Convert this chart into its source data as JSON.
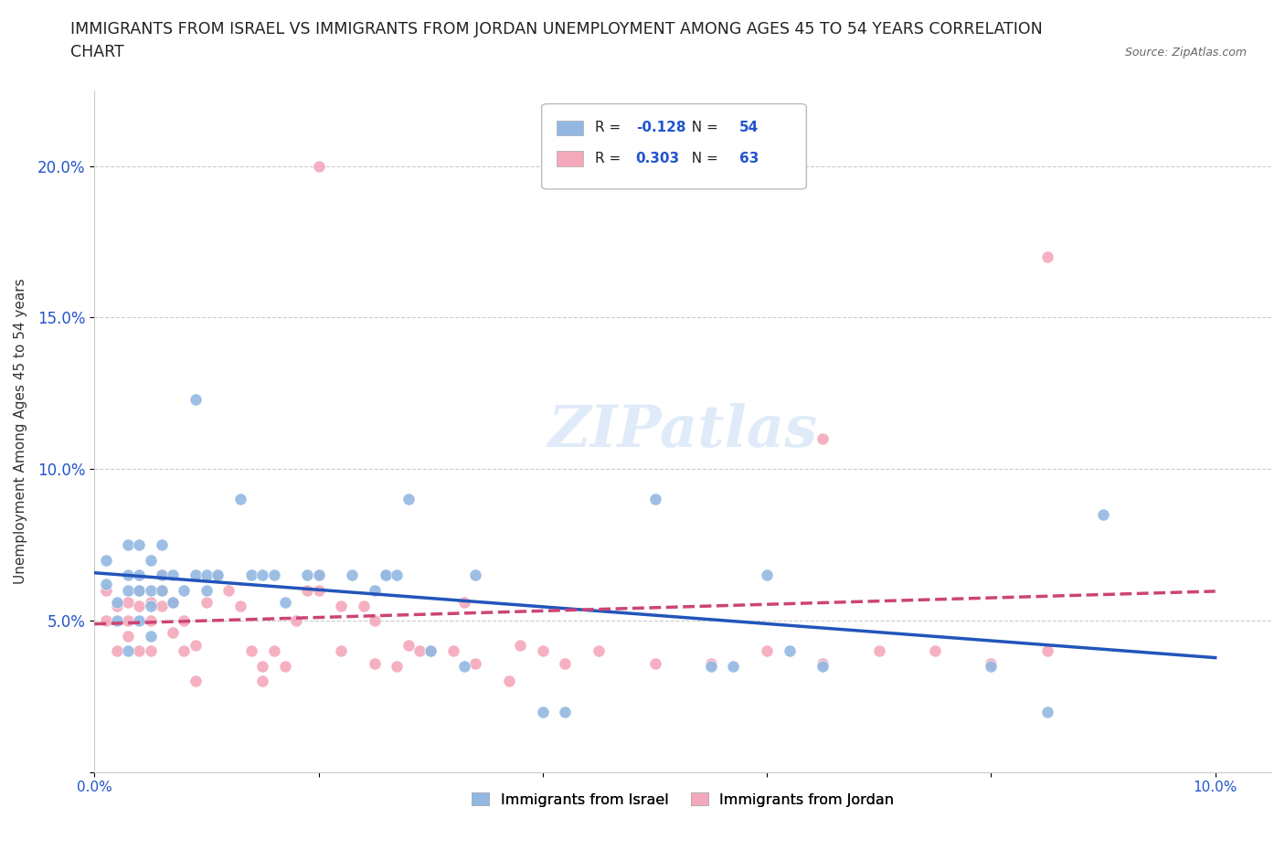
{
  "title_line1": "IMMIGRANTS FROM ISRAEL VS IMMIGRANTS FROM JORDAN UNEMPLOYMENT AMONG AGES 45 TO 54 YEARS CORRELATION",
  "title_line2": "CHART",
  "source": "Source: ZipAtlas.com",
  "ylabel": "Unemployment Among Ages 45 to 54 years",
  "xlim": [
    0.0,
    0.105
  ],
  "ylim": [
    0.0,
    0.225
  ],
  "yticks": [
    0.0,
    0.05,
    0.1,
    0.15,
    0.2
  ],
  "ytick_labels": [
    "",
    "5.0%",
    "10.0%",
    "15.0%",
    "20.0%"
  ],
  "israel_R": -0.128,
  "israel_N": 54,
  "jordan_R": 0.303,
  "jordan_N": 63,
  "israel_color": "#92b8e2",
  "jordan_color": "#f4a8bb",
  "israel_line_color": "#2255bb",
  "jordan_line_color": "#cc4477",
  "watermark": "ZIPatlas",
  "israel_x": [
    0.001,
    0.001,
    0.002,
    0.002,
    0.003,
    0.003,
    0.003,
    0.003,
    0.004,
    0.004,
    0.004,
    0.004,
    0.005,
    0.005,
    0.005,
    0.005,
    0.006,
    0.006,
    0.006,
    0.007,
    0.007,
    0.008,
    0.009,
    0.009,
    0.01,
    0.01,
    0.011,
    0.013,
    0.014,
    0.015,
    0.016,
    0.017,
    0.019,
    0.02,
    0.023,
    0.025,
    0.026,
    0.026,
    0.027,
    0.028,
    0.03,
    0.033,
    0.034,
    0.04,
    0.042,
    0.05,
    0.055,
    0.057,
    0.06,
    0.062,
    0.065,
    0.08,
    0.085,
    0.09
  ],
  "israel_y": [
    0.062,
    0.07,
    0.05,
    0.056,
    0.06,
    0.065,
    0.04,
    0.075,
    0.06,
    0.05,
    0.065,
    0.075,
    0.045,
    0.055,
    0.06,
    0.07,
    0.06,
    0.065,
    0.075,
    0.056,
    0.065,
    0.06,
    0.065,
    0.123,
    0.06,
    0.065,
    0.065,
    0.09,
    0.065,
    0.065,
    0.065,
    0.056,
    0.065,
    0.065,
    0.065,
    0.06,
    0.065,
    0.065,
    0.065,
    0.09,
    0.04,
    0.035,
    0.065,
    0.02,
    0.02,
    0.09,
    0.035,
    0.035,
    0.065,
    0.04,
    0.035,
    0.035,
    0.02,
    0.085
  ],
  "jordan_x": [
    0.001,
    0.001,
    0.002,
    0.002,
    0.003,
    0.003,
    0.003,
    0.004,
    0.004,
    0.004,
    0.005,
    0.005,
    0.005,
    0.006,
    0.006,
    0.006,
    0.007,
    0.007,
    0.008,
    0.008,
    0.009,
    0.009,
    0.01,
    0.011,
    0.012,
    0.013,
    0.014,
    0.015,
    0.015,
    0.016,
    0.017,
    0.018,
    0.019,
    0.02,
    0.02,
    0.022,
    0.022,
    0.024,
    0.025,
    0.025,
    0.027,
    0.028,
    0.029,
    0.03,
    0.032,
    0.033,
    0.034,
    0.037,
    0.038,
    0.04,
    0.042,
    0.045,
    0.05,
    0.055,
    0.06,
    0.065,
    0.07,
    0.075,
    0.08,
    0.085,
    0.085,
    0.065,
    0.02
  ],
  "jordan_y": [
    0.05,
    0.06,
    0.04,
    0.055,
    0.045,
    0.05,
    0.056,
    0.04,
    0.055,
    0.06,
    0.04,
    0.05,
    0.056,
    0.055,
    0.06,
    0.065,
    0.046,
    0.056,
    0.04,
    0.05,
    0.03,
    0.042,
    0.056,
    0.065,
    0.06,
    0.055,
    0.04,
    0.03,
    0.035,
    0.04,
    0.035,
    0.05,
    0.06,
    0.06,
    0.065,
    0.055,
    0.04,
    0.055,
    0.036,
    0.05,
    0.035,
    0.042,
    0.04,
    0.04,
    0.04,
    0.056,
    0.036,
    0.03,
    0.042,
    0.04,
    0.036,
    0.04,
    0.036,
    0.036,
    0.04,
    0.036,
    0.04,
    0.04,
    0.036,
    0.04,
    0.17,
    0.11,
    0.2
  ]
}
